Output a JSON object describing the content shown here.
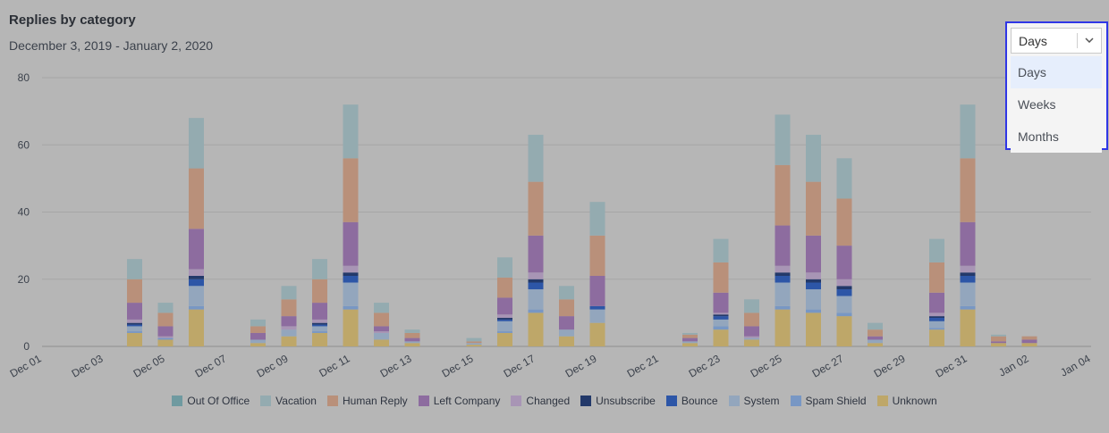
{
  "title": "Replies by category",
  "subtitle": "December 3, 2019 - January 2, 2020",
  "dropdown": {
    "selected": "Days",
    "options": [
      "Days",
      "Weeks",
      "Months"
    ],
    "chevron_icon": "chevron-down-icon"
  },
  "colors": {
    "Out Of Office": "#6f9aa0",
    "Vacation": "#94abb0",
    "Human Reply": "#b9907a",
    "Left Company": "#8d6c9f",
    "Changed": "#a895b5",
    "Unsubscribe": "#23396a",
    "Bounce": "#2d56a7",
    "System": "#93a6bd",
    "Spam Shield": "#7897c4",
    "Unknown": "#bea769"
  },
  "chart_data": {
    "type": "bar",
    "stacked": true,
    "title": "Replies by category",
    "subtitle": "December 3, 2019 - January 2, 2020",
    "xlabel": "",
    "ylabel": "",
    "ylim": [
      0,
      80
    ],
    "yticks": [
      0,
      20,
      40,
      60,
      80
    ],
    "xtick_labels": [
      "Dec 01",
      "Dec 03",
      "Dec 05",
      "Dec 07",
      "Dec 09",
      "Dec 11",
      "Dec 13",
      "Dec 15",
      "Dec 17",
      "Dec 19",
      "Dec 21",
      "Dec 23",
      "Dec 25",
      "Dec 27",
      "Dec 29",
      "Dec 31",
      "Jan 02",
      "Jan 04"
    ],
    "x_range": [
      "Dec 01",
      "Jan 04"
    ],
    "grid": true,
    "legend_position": "bottom",
    "categories": [
      "Dec 03",
      "Dec 04",
      "Dec 05",
      "Dec 06",
      "Dec 07",
      "Dec 08",
      "Dec 09",
      "Dec 10",
      "Dec 11",
      "Dec 12",
      "Dec 13",
      "Dec 14",
      "Dec 15",
      "Dec 16",
      "Dec 17",
      "Dec 18",
      "Dec 19",
      "Dec 20",
      "Dec 21",
      "Dec 22",
      "Dec 23",
      "Dec 24",
      "Dec 25",
      "Dec 26",
      "Dec 27",
      "Dec 28",
      "Dec 29",
      "Dec 30",
      "Dec 31",
      "Jan 01",
      "Jan 02"
    ],
    "series": [
      {
        "name": "Unknown",
        "values": [
          0,
          4,
          2,
          11,
          0,
          1,
          3,
          4,
          11,
          2,
          1,
          0,
          0.5,
          4,
          10,
          3,
          7,
          0,
          0,
          1,
          5,
          2,
          11,
          10,
          9,
          1,
          0,
          5,
          11,
          1,
          1
        ]
      },
      {
        "name": "Spam Shield",
        "values": [
          0,
          0.5,
          0.5,
          1,
          0,
          0,
          0,
          0.5,
          1,
          0,
          0,
          0,
          0,
          0.5,
          1,
          0,
          0,
          0,
          0,
          0,
          1,
          0,
          1,
          1,
          1,
          0,
          0,
          0.5,
          1,
          0,
          0
        ]
      },
      {
        "name": "System",
        "values": [
          0,
          1.5,
          0,
          6,
          0,
          1,
          2,
          1.5,
          7,
          2,
          0.5,
          0,
          0.5,
          3,
          6,
          2,
          4,
          0,
          0,
          0.5,
          2,
          0.5,
          7,
          6,
          5,
          1,
          0,
          2,
          7,
          0,
          0
        ]
      },
      {
        "name": "Bounce",
        "values": [
          0,
          0.5,
          0,
          2,
          0,
          0,
          0,
          0.5,
          2,
          0,
          0,
          0,
          0,
          0.5,
          2,
          0,
          1,
          0,
          0,
          0,
          1,
          0,
          2,
          2,
          2,
          0,
          0,
          1,
          2,
          0,
          0
        ]
      },
      {
        "name": "Unsubscribe",
        "values": [
          0,
          0.5,
          0,
          1,
          0,
          0,
          0,
          0.5,
          1,
          0,
          0,
          0,
          0,
          0.5,
          1,
          0,
          0,
          0,
          0,
          0,
          0.5,
          0,
          1,
          1,
          1,
          0,
          0,
          0.5,
          1,
          0,
          0
        ]
      },
      {
        "name": "Changed",
        "values": [
          0,
          1,
          0.5,
          2,
          0,
          0,
          1,
          1,
          2,
          0.5,
          0,
          0,
          0,
          1,
          2,
          0,
          0,
          0,
          0,
          0,
          0.5,
          0.5,
          2,
          2,
          2,
          0,
          0,
          1,
          2,
          0,
          0
        ]
      },
      {
        "name": "Left Company",
        "values": [
          0,
          5,
          3,
          12,
          0,
          2,
          3,
          5,
          13,
          1.5,
          1,
          0,
          0,
          5,
          11,
          4,
          9,
          0,
          0,
          1,
          6,
          3,
          12,
          11,
          10,
          1,
          0,
          6,
          13,
          0.5,
          1
        ]
      },
      {
        "name": "Human Reply",
        "values": [
          0,
          7,
          4,
          18,
          0,
          2,
          5,
          7,
          19,
          4,
          1.5,
          0,
          0.5,
          6,
          16,
          5,
          12,
          0,
          0,
          1,
          9,
          4,
          18,
          16,
          14,
          2,
          0,
          9,
          19,
          1.5,
          1
        ]
      },
      {
        "name": "Vacation",
        "values": [
          0,
          6,
          3,
          15,
          0,
          2,
          4,
          6,
          16,
          3,
          1,
          0,
          1,
          6,
          14,
          4,
          10,
          0,
          0,
          0.5,
          7,
          4,
          15,
          14,
          12,
          2,
          0,
          7,
          16,
          0.5,
          0
        ]
      },
      {
        "name": "Out Of Office",
        "values": [
          0,
          0,
          0,
          0,
          0,
          0,
          0,
          0,
          0,
          0,
          0,
          0,
          0,
          0,
          0,
          0,
          0,
          0,
          0,
          0,
          0,
          0,
          0,
          0,
          0,
          0,
          0,
          0,
          0,
          0,
          0
        ]
      }
    ],
    "legend": [
      "Out Of Office",
      "Vacation",
      "Human Reply",
      "Left Company",
      "Changed",
      "Unsubscribe",
      "Bounce",
      "System",
      "Spam Shield",
      "Unknown"
    ]
  }
}
